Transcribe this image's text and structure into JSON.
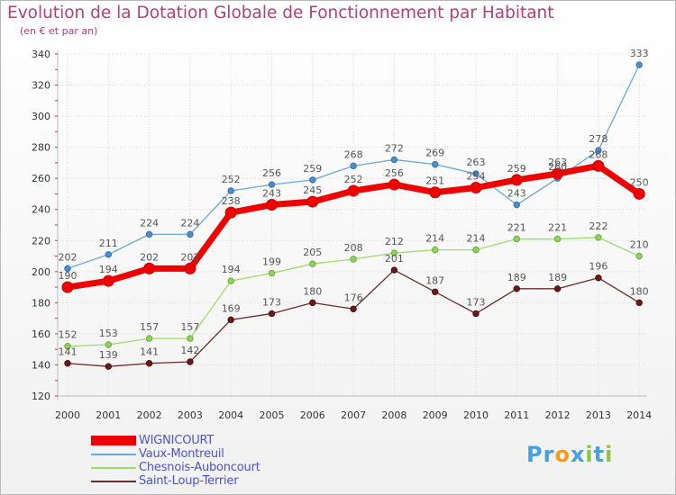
{
  "header": {
    "title": "Evolution de la Dotation Globale de Fonctionnement par Habitant",
    "subtitle": "(en € et par an)"
  },
  "logo": {
    "p": "Pr",
    "o": "o",
    "x": "x",
    "i": "i",
    "t": "t",
    "i2": "i"
  },
  "colors": {
    "WIGNICOURT": "#ee0000",
    "Vaux-Montreuil": "#6ea6d4",
    "Chesnois-Auboncourt": "#9edb6a",
    "Saint-Loup-Terrier": "#6b2b2b",
    "title": "#b0407a",
    "legend_text": "#4b52d8",
    "grid": "#d8d8d8"
  },
  "chart_data": {
    "type": "line",
    "title": "Evolution de la Dotation Globale de Fonctionnement par Habitant",
    "subtitle": "(en € et par an)",
    "xlabel": "",
    "ylabel": "",
    "x": [
      "2000",
      "2001",
      "2002",
      "2003",
      "2004",
      "2005",
      "2006",
      "2007",
      "2008",
      "2009",
      "2010",
      "2011",
      "2012",
      "2013",
      "2014"
    ],
    "ylim": [
      120,
      340
    ],
    "yticks": [
      120,
      140,
      160,
      180,
      200,
      220,
      240,
      260,
      280,
      300,
      320,
      340
    ],
    "grid": true,
    "legend_position": "bottom-left",
    "series": [
      {
        "name": "WIGNICOURT",
        "values": [
          190,
          194,
          202,
          202,
          238,
          243,
          245,
          252,
          256,
          251,
          254,
          259,
          263,
          268,
          250
        ]
      },
      {
        "name": "Vaux-Montreuil",
        "values": [
          202,
          211,
          224,
          224,
          252,
          256,
          259,
          268,
          272,
          269,
          263,
          243,
          260,
          278,
          333
        ]
      },
      {
        "name": "Chesnois-Auboncourt",
        "values": [
          152,
          153,
          157,
          157,
          194,
          199,
          205,
          208,
          212,
          214,
          214,
          221,
          221,
          222,
          210
        ]
      },
      {
        "name": "Saint-Loup-Terrier",
        "values": [
          141,
          139,
          141,
          142,
          169,
          173,
          180,
          176,
          201,
          187,
          173,
          189,
          189,
          196,
          180
        ]
      }
    ]
  }
}
